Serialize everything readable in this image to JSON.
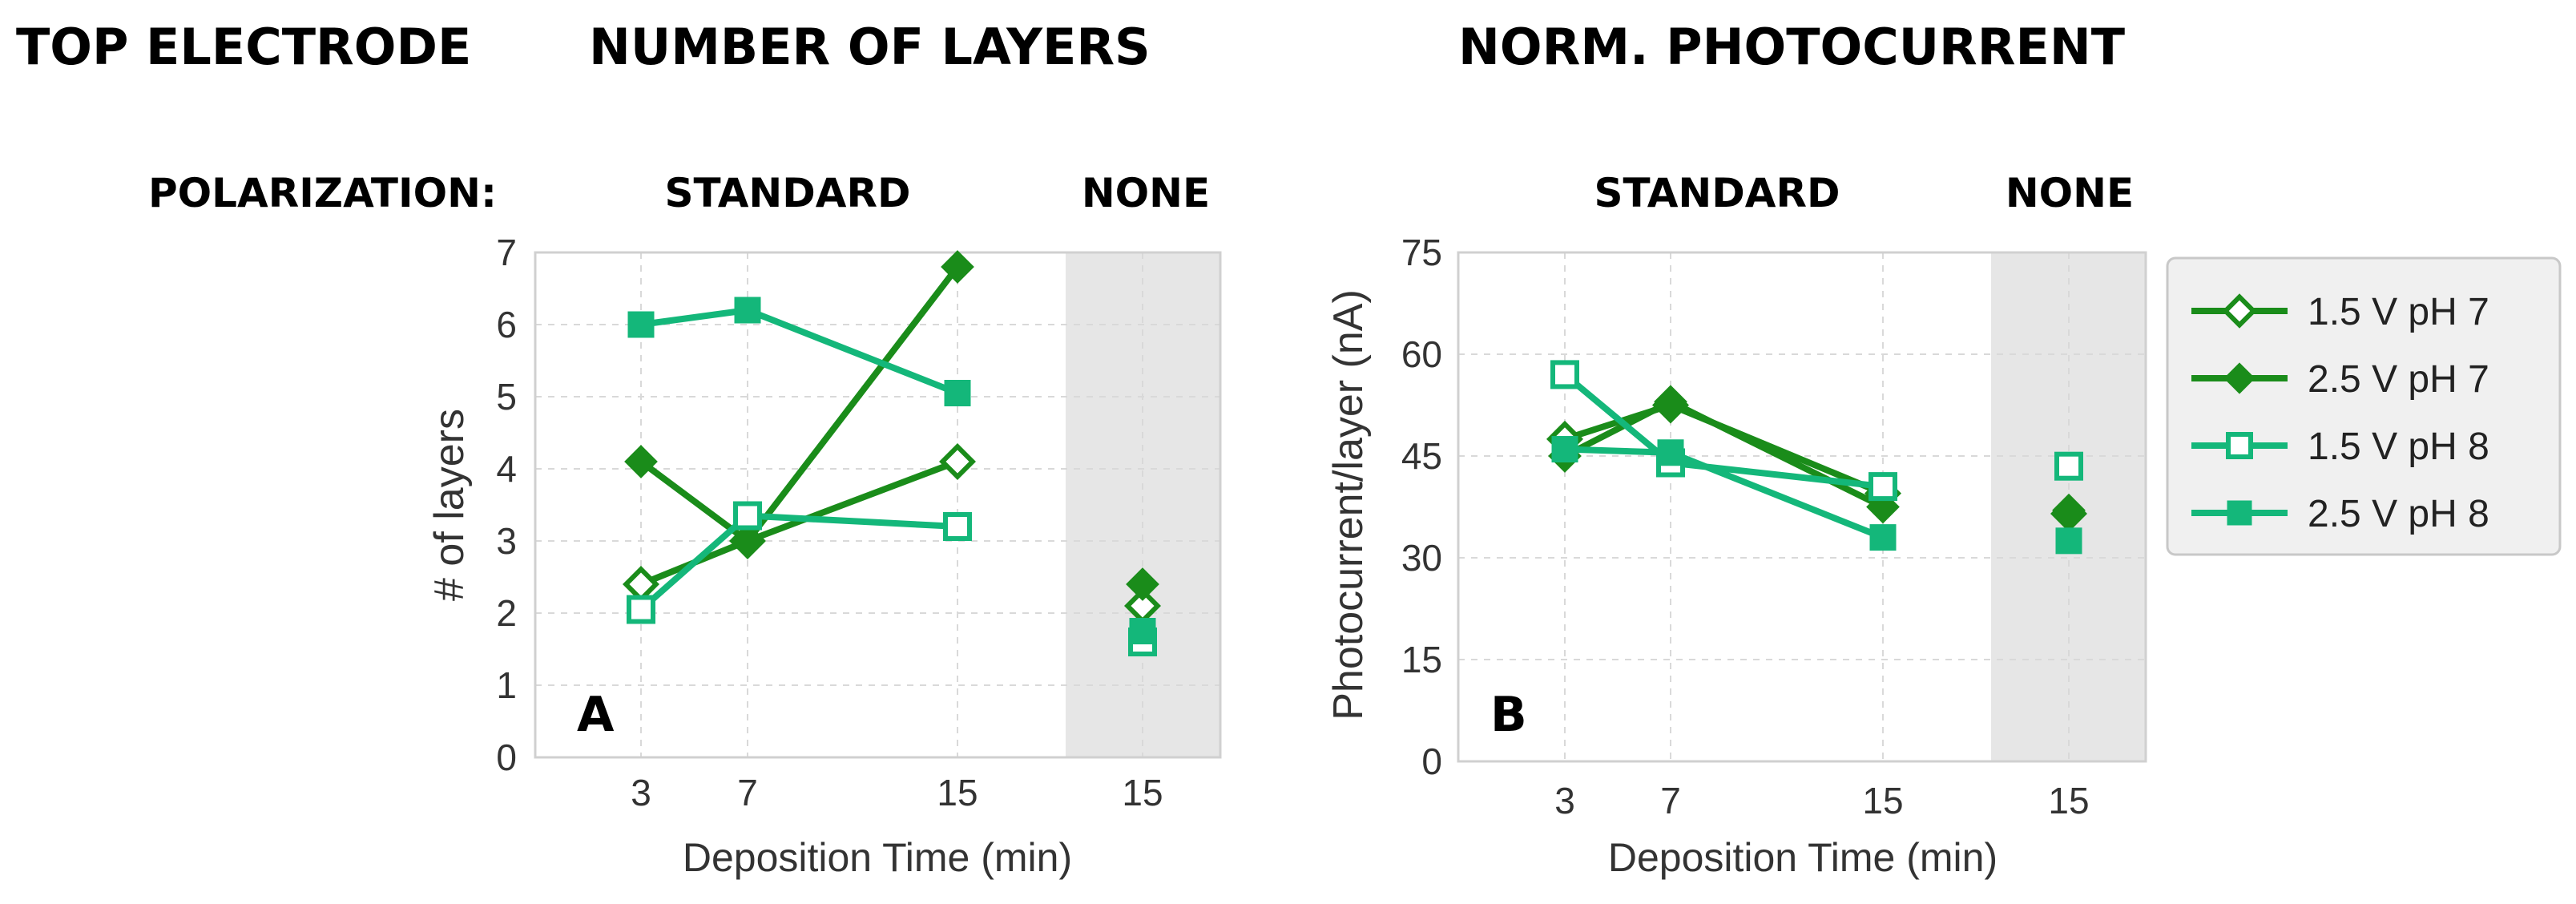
{
  "headers": {
    "top_electrode": "TOP ELECTRODE",
    "number_of_layers": "NUMBER OF LAYERS",
    "norm_photocurrent": "NORM. PHOTOCURRENT",
    "polarization": "POLARIZATION:",
    "standard_a": "STANDARD",
    "none_a": "NONE",
    "standard_b": "STANDARD",
    "none_b": "NONE"
  },
  "colors": {
    "dark_green": "#1a8c1a",
    "light_green": "#14b77a",
    "shaded_region": "#e6e6e6",
    "grid": "#d9d9d9"
  },
  "legend": [
    {
      "label": "1.5 V pH 7",
      "series": 0
    },
    {
      "label": "2.5 V pH 7",
      "series": 1
    },
    {
      "label": "1.5 V pH 8",
      "series": 2
    },
    {
      "label": "2.5 V pH 8",
      "series": 3
    }
  ],
  "chart_data": [
    {
      "type": "line",
      "panel_label": "A",
      "xlabel": "Deposition Time (min)",
      "ylabel": "# of layers",
      "ylim": [
        0,
        7
      ],
      "yticks": [
        "0",
        "1",
        "2",
        "3",
        "4",
        "5",
        "6",
        "7"
      ],
      "xticks": [
        "3",
        "7",
        "15",
        "15"
      ],
      "grid": true,
      "standard_x": [
        3,
        7,
        15
      ],
      "series": [
        {
          "name": "1.5 V pH 7",
          "marker": "diamond-open",
          "color": "dark",
          "values": [
            2.4,
            3.0,
            4.1
          ],
          "none_value": 2.1
        },
        {
          "name": "2.5 V pH 7",
          "marker": "diamond-filled",
          "color": "dark",
          "values": [
            4.1,
            3.0,
            6.8
          ],
          "none_value": 2.4
        },
        {
          "name": "1.5 V pH 8",
          "marker": "square-open",
          "color": "light",
          "values": [
            2.05,
            3.35,
            3.2
          ],
          "none_value": 1.6
        },
        {
          "name": "2.5 V pH 8",
          "marker": "square-filled",
          "color": "light",
          "values": [
            6.0,
            6.2,
            5.05
          ],
          "none_value": 1.75
        }
      ]
    },
    {
      "type": "line",
      "panel_label": "B",
      "xlabel": "Deposition Time (min)",
      "ylabel": "Photocurrent/layer (nA)",
      "ylim": [
        0,
        75
      ],
      "yticks": [
        "0",
        "15",
        "30",
        "45",
        "60",
        "75"
      ],
      "xticks": [
        "3",
        "7",
        "15",
        "15"
      ],
      "grid": true,
      "standard_x": [
        3,
        7,
        15
      ],
      "series": [
        {
          "name": "1.5 V pH 7",
          "marker": "diamond-open",
          "color": "dark",
          "values": [
            47.5,
            52.5,
            39.5
          ],
          "none_value": 36.5
        },
        {
          "name": "2.5 V pH 7",
          "marker": "diamond-filled",
          "color": "dark",
          "values": [
            45.0,
            53.0,
            37.5
          ],
          "none_value": 37.0
        },
        {
          "name": "1.5 V pH 8",
          "marker": "square-open",
          "color": "light",
          "values": [
            57.0,
            44.0,
            40.5
          ],
          "none_value": 43.5
        },
        {
          "name": "2.5 V pH 8",
          "marker": "square-filled",
          "color": "light",
          "values": [
            46.0,
            45.5,
            33.0
          ],
          "none_value": 32.5
        }
      ]
    }
  ]
}
